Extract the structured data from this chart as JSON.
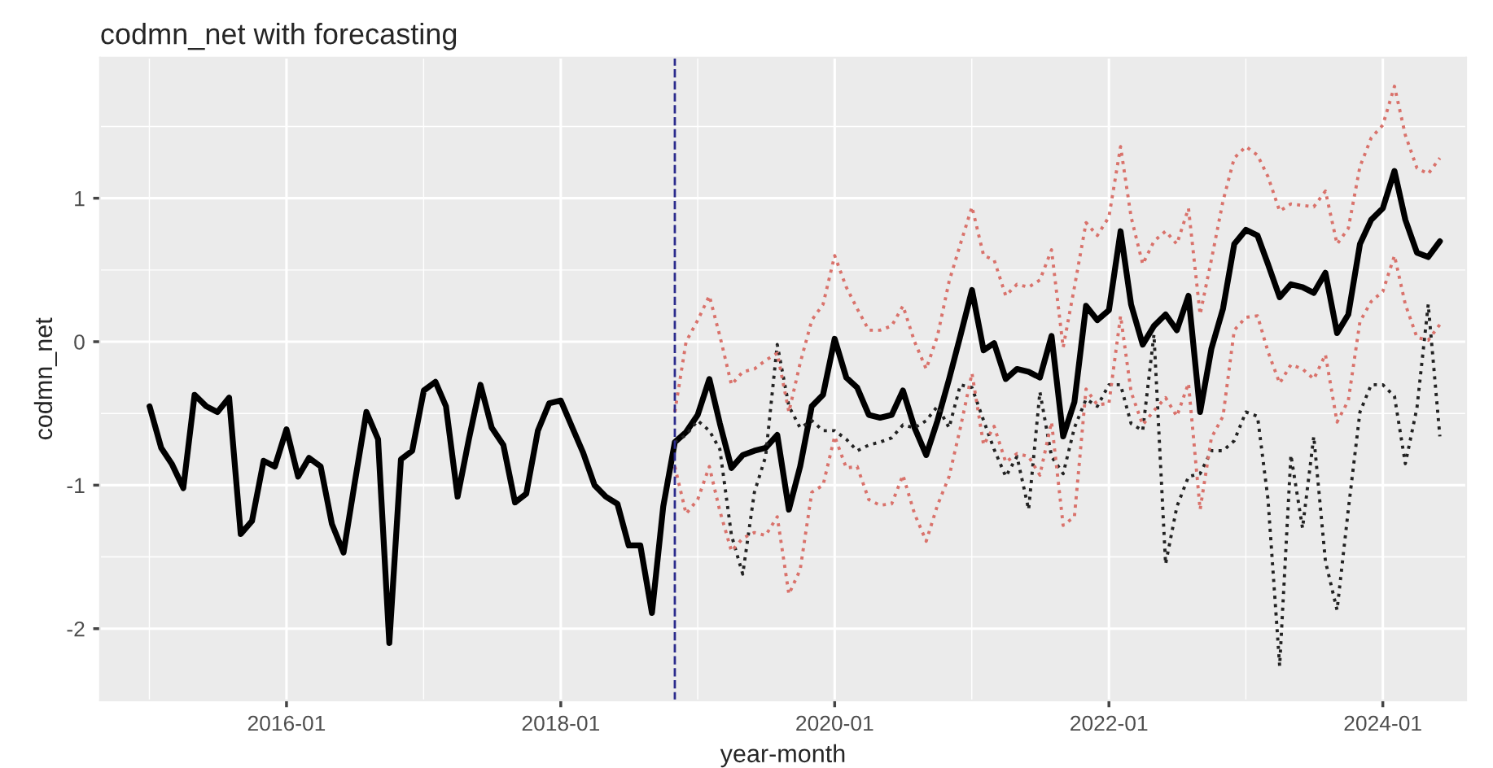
{
  "chart_data": {
    "type": "line",
    "title": "codmn_net with forecasting",
    "xlabel": "year-month",
    "ylabel": "codmn_net",
    "x": [
      "2015-01",
      "2015-02",
      "2015-03",
      "2015-04",
      "2015-05",
      "2015-06",
      "2015-07",
      "2015-08",
      "2015-09",
      "2015-10",
      "2015-11",
      "2015-12",
      "2016-01",
      "2016-02",
      "2016-03",
      "2016-04",
      "2016-05",
      "2016-06",
      "2016-07",
      "2016-08",
      "2016-09",
      "2016-10",
      "2016-11",
      "2016-12",
      "2017-01",
      "2017-02",
      "2017-03",
      "2017-04",
      "2017-05",
      "2017-06",
      "2017-07",
      "2017-08",
      "2017-09",
      "2017-10",
      "2017-11",
      "2017-12",
      "2018-01",
      "2018-02",
      "2018-03",
      "2018-04",
      "2018-05",
      "2018-06",
      "2018-07",
      "2018-08",
      "2018-09",
      "2018-10",
      "2018-11",
      "2018-12",
      "2019-01",
      "2019-02",
      "2019-03",
      "2019-04",
      "2019-05",
      "2019-06",
      "2019-07",
      "2019-08",
      "2019-09",
      "2019-10",
      "2019-11",
      "2019-12",
      "2020-01",
      "2020-02",
      "2020-03",
      "2020-04",
      "2020-05",
      "2020-06",
      "2020-07",
      "2020-08",
      "2020-09",
      "2020-10",
      "2020-11",
      "2020-12",
      "2021-01",
      "2021-02",
      "2021-03",
      "2021-04",
      "2021-05",
      "2021-06",
      "2021-07",
      "2021-08",
      "2021-09",
      "2021-10",
      "2021-11",
      "2021-12",
      "2022-01",
      "2022-02",
      "2022-03",
      "2022-04",
      "2022-05",
      "2022-06",
      "2022-07",
      "2022-08",
      "2022-09",
      "2022-10",
      "2022-11",
      "2022-12",
      "2023-01",
      "2023-02",
      "2023-03",
      "2023-04",
      "2023-05",
      "2023-06",
      "2023-07",
      "2023-08",
      "2023-09",
      "2023-10",
      "2023-11",
      "2023-12",
      "2024-01",
      "2024-02",
      "2024-03",
      "2024-04",
      "2024-05",
      "2024-06"
    ],
    "series": [
      {
        "color": "#000000",
        "line_style": "solid",
        "values": [
          -0.45,
          -0.74,
          -0.85,
          -1.02,
          -0.37,
          -0.45,
          -0.49,
          -0.39,
          -1.34,
          -1.25,
          -0.83,
          -0.87,
          -0.61,
          -0.94,
          -0.81,
          -0.87,
          -1.27,
          -1.47,
          -0.98,
          -0.49,
          -0.68,
          -2.1,
          -0.82,
          -0.76,
          -0.34,
          -0.28,
          -0.45,
          -1.08,
          -0.68,
          -0.3,
          -0.6,
          -0.72,
          -1.12,
          -1.06,
          -0.62,
          -0.43,
          -0.41,
          -0.6,
          -0.77,
          -1.0,
          -1.08,
          -1.13,
          -1.42,
          -1.42,
          -1.89,
          -1.15,
          -0.7,
          -0.63,
          -0.51,
          -0.26,
          -0.57,
          -0.88,
          -0.79,
          -0.76,
          -0.74,
          -0.65,
          -1.17,
          -0.87,
          -0.45,
          -0.37,
          0.02,
          -0.25,
          -0.32,
          -0.51,
          -0.53,
          -0.51,
          -0.34,
          -0.6,
          -0.79,
          -0.55,
          -0.26,
          0.04,
          0.36,
          -0.06,
          -0.01,
          -0.26,
          -0.19,
          -0.21,
          -0.25,
          0.04,
          -0.66,
          -0.42,
          0.25,
          0.15,
          0.22,
          0.77,
          0.26,
          -0.02,
          0.11,
          0.19,
          0.08,
          0.32,
          -0.49,
          -0.05,
          0.23,
          0.68,
          0.78,
          0.74,
          0.54,
          0.31,
          0.4,
          0.38,
          0.34,
          0.48,
          0.06,
          0.19,
          0.68,
          0.85,
          0.93,
          1.19,
          0.85,
          0.62,
          0.59,
          0.7
        ]
      },
      {
        "color": "#222222",
        "line_style": "dotted",
        "x": [
          "2018-11",
          "2018-12",
          "2019-01",
          "2019-02",
          "2019-03",
          "2019-04",
          "2019-05",
          "2019-06",
          "2019-07",
          "2019-08",
          "2019-09",
          "2019-10",
          "2019-11",
          "2019-12",
          "2020-01",
          "2020-02",
          "2020-03",
          "2020-04",
          "2020-05",
          "2020-06",
          "2020-07",
          "2020-08",
          "2020-09",
          "2020-10",
          "2020-11",
          "2020-12",
          "2021-01",
          "2021-02",
          "2021-03",
          "2021-04",
          "2021-05",
          "2021-06",
          "2021-07",
          "2021-08",
          "2021-09",
          "2021-10",
          "2021-11",
          "2021-12",
          "2022-01",
          "2022-02",
          "2022-03",
          "2022-04",
          "2022-05",
          "2022-06",
          "2022-07",
          "2022-08",
          "2022-09",
          "2022-10",
          "2022-11",
          "2022-12",
          "2023-01",
          "2023-02",
          "2023-03",
          "2023-04",
          "2023-05",
          "2023-06",
          "2023-07",
          "2023-08",
          "2023-09",
          "2023-10",
          "2023-11",
          "2023-12",
          "2024-01",
          "2024-02",
          "2024-03",
          "2024-04",
          "2024-05",
          "2024-06"
        ],
        "values": [
          -0.7,
          -0.65,
          -0.55,
          -0.62,
          -0.75,
          -1.35,
          -1.62,
          -1.05,
          -0.8,
          -0.02,
          -0.45,
          -0.6,
          -0.55,
          -0.62,
          -0.62,
          -0.68,
          -0.76,
          -0.72,
          -0.7,
          -0.67,
          -0.58,
          -0.6,
          -0.55,
          -0.45,
          -0.6,
          -0.3,
          -0.32,
          -0.55,
          -0.75,
          -0.94,
          -0.8,
          -1.17,
          -0.35,
          -0.8,
          -0.92,
          -0.6,
          -0.4,
          -0.45,
          -0.3,
          -0.3,
          -0.57,
          -0.62,
          0.05,
          -1.55,
          -1.15,
          -0.94,
          -0.92,
          -0.76,
          -0.76,
          -0.69,
          -0.49,
          -0.52,
          -1.1,
          -2.26,
          -0.79,
          -1.3,
          -0.66,
          -1.53,
          -1.87,
          -1.17,
          -0.49,
          -0.3,
          -0.3,
          -0.38,
          -0.85,
          -0.46,
          0.26,
          -0.66
        ]
      },
      {
        "color": "#d9726b",
        "line_style": "dotted",
        "x": [
          "2018-11",
          "2018-12",
          "2019-01",
          "2019-02",
          "2019-03",
          "2019-04",
          "2019-05",
          "2019-06",
          "2019-07",
          "2019-08",
          "2019-09",
          "2019-10",
          "2019-11",
          "2019-12",
          "2020-01",
          "2020-02",
          "2020-03",
          "2020-04",
          "2020-05",
          "2020-06",
          "2020-07",
          "2020-08",
          "2020-09",
          "2020-10",
          "2020-11",
          "2020-12",
          "2021-01",
          "2021-02",
          "2021-03",
          "2021-04",
          "2021-05",
          "2021-06",
          "2021-07",
          "2021-08",
          "2021-09",
          "2021-10",
          "2021-11",
          "2021-12",
          "2022-01",
          "2022-02",
          "2022-03",
          "2022-04",
          "2022-05",
          "2022-06",
          "2022-07",
          "2022-08",
          "2022-09",
          "2022-10",
          "2022-11",
          "2022-12",
          "2023-01",
          "2023-02",
          "2023-03",
          "2023-04",
          "2023-05",
          "2023-06",
          "2023-07",
          "2023-08",
          "2023-09",
          "2023-10",
          "2023-11",
          "2023-12",
          "2024-01",
          "2024-02",
          "2024-03",
          "2024-04",
          "2024-05",
          "2024-06"
        ],
        "values": [
          -0.49,
          0.0,
          0.15,
          0.32,
          0.04,
          -0.3,
          -0.21,
          -0.19,
          -0.13,
          -0.08,
          -0.49,
          -0.15,
          0.15,
          0.26,
          0.6,
          0.38,
          0.23,
          0.08,
          0.08,
          0.11,
          0.25,
          0.0,
          -0.19,
          0.04,
          0.42,
          0.68,
          0.94,
          0.6,
          0.57,
          0.32,
          0.4,
          0.38,
          0.43,
          0.64,
          -0.04,
          0.38,
          0.83,
          0.74,
          0.87,
          1.36,
          0.87,
          0.54,
          0.7,
          0.77,
          0.68,
          0.93,
          0.19,
          0.57,
          0.98,
          1.28,
          1.36,
          1.3,
          1.15,
          0.91,
          0.96,
          0.95,
          0.94,
          1.05,
          0.68,
          0.79,
          1.22,
          1.42,
          1.51,
          1.78,
          1.44,
          1.21,
          1.17,
          1.28
        ]
      },
      {
        "color": "#d9726b",
        "line_style": "dotted",
        "x": [
          "2018-11",
          "2018-12",
          "2019-01",
          "2019-02",
          "2019-03",
          "2019-04",
          "2019-05",
          "2019-06",
          "2019-07",
          "2019-08",
          "2019-09",
          "2019-10",
          "2019-11",
          "2019-12",
          "2020-01",
          "2020-02",
          "2020-03",
          "2020-04",
          "2020-05",
          "2020-06",
          "2020-07",
          "2020-08",
          "2020-09",
          "2020-10",
          "2020-11",
          "2020-12",
          "2021-01",
          "2021-02",
          "2021-03",
          "2021-04",
          "2021-05",
          "2021-06",
          "2021-07",
          "2021-08",
          "2021-09",
          "2021-10",
          "2021-11",
          "2021-12",
          "2022-01",
          "2022-02",
          "2022-03",
          "2022-04",
          "2022-05",
          "2022-06",
          "2022-07",
          "2022-08",
          "2022-09",
          "2022-10",
          "2022-11",
          "2022-12",
          "2023-01",
          "2023-02",
          "2023-03",
          "2023-04",
          "2023-05",
          "2023-06",
          "2023-07",
          "2023-08",
          "2023-09",
          "2023-10",
          "2023-11",
          "2023-12",
          "2024-01",
          "2024-02",
          "2024-03",
          "2024-04",
          "2024-05",
          "2024-06"
        ],
        "values": [
          -0.87,
          -1.2,
          -1.1,
          -0.87,
          -1.18,
          -1.46,
          -1.37,
          -1.33,
          -1.35,
          -1.22,
          -1.76,
          -1.59,
          -1.05,
          -1.0,
          -0.66,
          -0.88,
          -0.87,
          -1.1,
          -1.14,
          -1.13,
          -0.93,
          -1.2,
          -1.39,
          -1.14,
          -0.94,
          -0.6,
          -0.22,
          -0.72,
          -0.59,
          -0.84,
          -0.78,
          -0.8,
          -0.93,
          -0.56,
          -1.28,
          -1.22,
          -0.33,
          -0.44,
          -0.43,
          0.18,
          -0.35,
          -0.58,
          -0.48,
          -0.39,
          -0.52,
          -0.29,
          -1.17,
          -0.67,
          -0.52,
          0.08,
          0.17,
          0.18,
          -0.07,
          -0.29,
          -0.16,
          -0.19,
          -0.26,
          -0.09,
          -0.56,
          -0.41,
          0.14,
          0.28,
          0.35,
          0.6,
          0.26,
          0.03,
          0.01,
          0.12
        ]
      }
    ],
    "ref_lines": [
      {
        "axis": "x",
        "value": "2018-11",
        "color": "#2b2b8c",
        "line_style": "dashed"
      }
    ],
    "xlim": [
      "2014-08-22",
      "2024-08-10"
    ],
    "xticks": [
      {
        "value": "2016-01",
        "label": "2016-01"
      },
      {
        "value": "2018-01",
        "label": "2018-01"
      },
      {
        "value": "2020-01",
        "label": "2020-01"
      },
      {
        "value": "2022-01",
        "label": "2022-01"
      },
      {
        "value": "2024-01",
        "label": "2024-01"
      }
    ],
    "ylim": [
      -2.5,
      1.98
    ],
    "yticks": [
      -2,
      -1,
      0,
      1
    ],
    "grid": true,
    "legend": false,
    "marker": "none"
  }
}
